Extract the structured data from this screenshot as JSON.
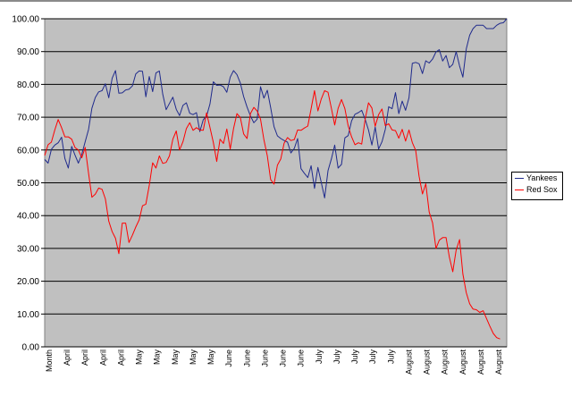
{
  "chart_data": {
    "type": "line",
    "title": "",
    "xlabel": "",
    "ylabel": "",
    "ylim": [
      0,
      100
    ],
    "yticks": [
      "0.00",
      "10.00",
      "20.00",
      "30.00",
      "40.00",
      "50.00",
      "60.00",
      "70.00",
      "80.00",
      "90.00",
      "100.00"
    ],
    "xticks": [
      "Month",
      "April",
      "April",
      "April",
      "April",
      "May",
      "May",
      "May",
      "May",
      "May",
      "June",
      "June",
      "June",
      "June",
      "June",
      "July",
      "July",
      "July",
      "July",
      "July",
      "August",
      "August",
      "August",
      "August",
      "August",
      "August"
    ],
    "plot_background": "#c0c0c0",
    "grid": true,
    "legend_position": "right",
    "series": [
      {
        "name": "Yankees",
        "color": "#1f2a8c",
        "values": [
          57.1,
          56.0,
          60.2,
          61.5,
          62.2,
          63.9,
          57.4,
          54.5,
          61.1,
          58.4,
          56.0,
          58.7,
          62.5,
          66.3,
          72.7,
          76.0,
          77.7,
          78.1,
          80.2,
          75.9,
          81.9,
          84.2,
          77.3,
          77.4,
          78.3,
          78.5,
          79.5,
          83.2,
          84.1,
          84.0,
          76.2,
          82.4,
          77.8,
          83.5,
          84.1,
          77.0,
          72.3,
          74.2,
          76.1,
          72.4,
          70.5,
          73.6,
          74.4,
          71.2,
          70.8,
          71.4,
          65.6,
          69.2,
          70.3,
          74.0,
          80.8,
          79.7,
          79.8,
          79.3,
          77.6,
          82.2,
          84.2,
          83.0,
          80.4,
          76.3,
          73.1,
          70.4,
          68.3,
          69.4,
          79.3,
          75.8,
          78.2,
          73.0,
          67.1,
          64.3,
          63.5,
          62.9,
          62.4,
          59.1,
          60.5,
          63.5,
          54.3,
          52.9,
          51.6,
          55.2,
          48.3,
          54.7,
          50.2,
          45.4,
          53.7,
          57.3,
          61.5,
          54.5,
          55.6,
          63.7,
          64.4,
          68.9,
          70.9,
          71.4,
          72.1,
          69.4,
          66.1,
          61.5,
          67.0,
          60.3,
          62.5,
          66.3,
          73.2,
          72.6,
          77.5,
          71.1,
          74.9,
          72.1,
          75.9,
          86.4,
          86.7,
          86.3,
          83.3,
          87.2,
          86.5,
          87.7,
          89.9,
          90.6,
          87.1,
          88.8,
          85.1,
          86.1,
          90.0,
          85.6,
          82.2,
          90.8,
          95.0,
          97.0,
          98.0,
          98.0,
          98.0,
          97.0,
          97.0,
          97.0,
          98.0,
          98.6,
          98.8,
          100.0
        ]
      },
      {
        "name": "Red Sox",
        "color": "#ff0000",
        "values": [
          58.3,
          61.6,
          62.4,
          66.1,
          69.3,
          66.8,
          64.0,
          64.0,
          63.3,
          60.7,
          60.0,
          57.6,
          60.8,
          52.9,
          45.6,
          46.5,
          48.4,
          48.0,
          45.1,
          38.3,
          35.1,
          33.1,
          28.4,
          37.7,
          37.7,
          31.8,
          34.0,
          36.5,
          38.7,
          43.0,
          43.5,
          49.2,
          56.1,
          54.5,
          58.2,
          55.9,
          56.2,
          58.2,
          63.3,
          65.8,
          60.0,
          62.5,
          66.5,
          68.3,
          66.0,
          66.8,
          66.1,
          66.0,
          71.3,
          66.9,
          62.3,
          56.5,
          63.3,
          62.0,
          66.4,
          60.3,
          66.5,
          71.1,
          69.9,
          64.9,
          63.5,
          71.1,
          73.0,
          71.9,
          69.4,
          63.1,
          58.2,
          51.0,
          49.6,
          55.4,
          57.3,
          62.1,
          63.8,
          62.9,
          63.2,
          66.1,
          66.0,
          66.7,
          67.3,
          72.6,
          78.1,
          71.9,
          75.5,
          78.1,
          77.6,
          72.7,
          67.6,
          72.7,
          75.4,
          72.6,
          67.3,
          64.0,
          61.6,
          62.2,
          61.8,
          69.3,
          74.4,
          72.8,
          67.2,
          70.8,
          72.5,
          67.4,
          68.0,
          66.1,
          65.9,
          63.6,
          66.3,
          62.7,
          66.1,
          62.3,
          59.9,
          52.0,
          46.6,
          49.7,
          41.1,
          37.8,
          30.0,
          32.5,
          33.3,
          33.3,
          27.3,
          22.9,
          29.5,
          32.7,
          22.2,
          16.5,
          13.1,
          11.5,
          11.3,
          10.5,
          11.0,
          8.6,
          6.3,
          4.1,
          2.8,
          2.4
        ]
      }
    ]
  }
}
